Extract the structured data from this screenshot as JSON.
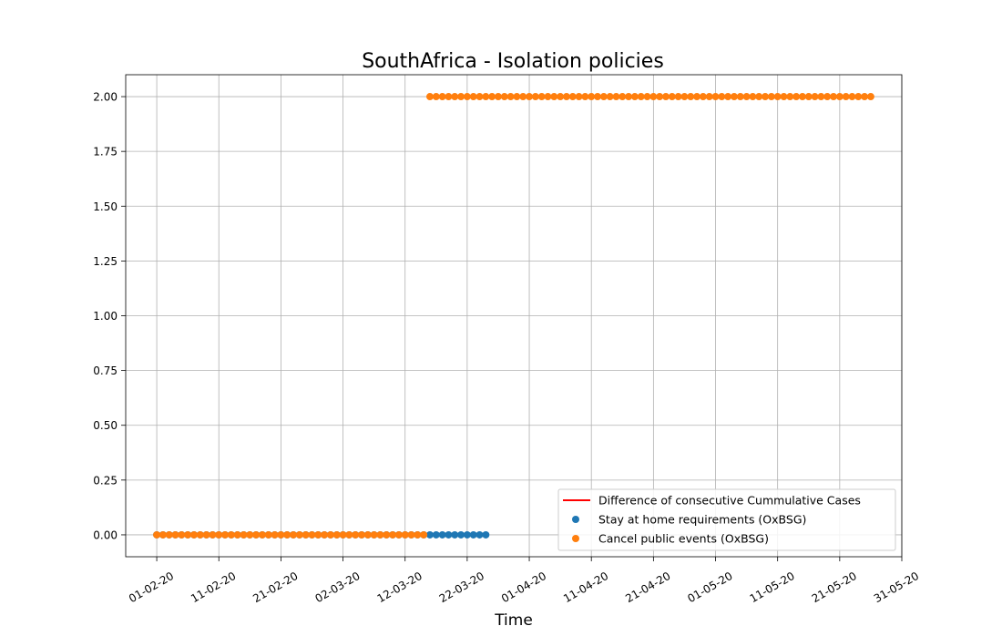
{
  "chart_data": {
    "type": "scatter",
    "title": "SouthAfrica - Isolation policies",
    "xlabel": "Time",
    "ylabel": "",
    "x_axis_type": "date",
    "xlim": [
      "2020-01-27",
      "2020-05-31"
    ],
    "ylim": [
      -0.1,
      2.1
    ],
    "grid": true,
    "x_ticks": [
      {
        "date": "2020-02-01",
        "label": "01-02-20"
      },
      {
        "date": "2020-02-11",
        "label": "11-02-20"
      },
      {
        "date": "2020-02-21",
        "label": "21-02-20"
      },
      {
        "date": "2020-03-02",
        "label": "02-03-20"
      },
      {
        "date": "2020-03-12",
        "label": "12-03-20"
      },
      {
        "date": "2020-03-22",
        "label": "22-03-20"
      },
      {
        "date": "2020-04-01",
        "label": "01-04-20"
      },
      {
        "date": "2020-04-11",
        "label": "11-04-20"
      },
      {
        "date": "2020-04-21",
        "label": "21-04-20"
      },
      {
        "date": "2020-05-01",
        "label": "01-05-20"
      },
      {
        "date": "2020-05-11",
        "label": "11-05-20"
      },
      {
        "date": "2020-05-21",
        "label": "21-05-20"
      },
      {
        "date": "2020-05-31",
        "label": "31-05-20"
      }
    ],
    "y_ticks": [
      {
        "value": 0.0,
        "label": "0.00"
      },
      {
        "value": 0.25,
        "label": "0.25"
      },
      {
        "value": 0.5,
        "label": "0.50"
      },
      {
        "value": 0.75,
        "label": "0.75"
      },
      {
        "value": 1.0,
        "label": "1.00"
      },
      {
        "value": 1.25,
        "label": "1.25"
      },
      {
        "value": 1.5,
        "label": "1.50"
      },
      {
        "value": 1.75,
        "label": "1.75"
      },
      {
        "value": 2.0,
        "label": "2.00"
      }
    ],
    "legend_position": "lower-right",
    "series": [
      {
        "name": "Difference of consecutive Cummulative Cases",
        "kind": "line",
        "color": "#ff0000",
        "points": []
      },
      {
        "name": "Stay at home requirements (OxBSG)",
        "kind": "scatter",
        "color": "#1f77b4",
        "segments": [
          {
            "start": "2020-02-01",
            "end": "2020-03-25",
            "value": 0
          }
        ]
      },
      {
        "name": "Cancel public events (OxBSG)",
        "kind": "scatter",
        "color": "#ff7f0e",
        "segments": [
          {
            "start": "2020-02-01",
            "end": "2020-03-15",
            "value": 0
          },
          {
            "start": "2020-03-16",
            "end": "2020-05-26",
            "value": 2
          }
        ]
      }
    ]
  }
}
